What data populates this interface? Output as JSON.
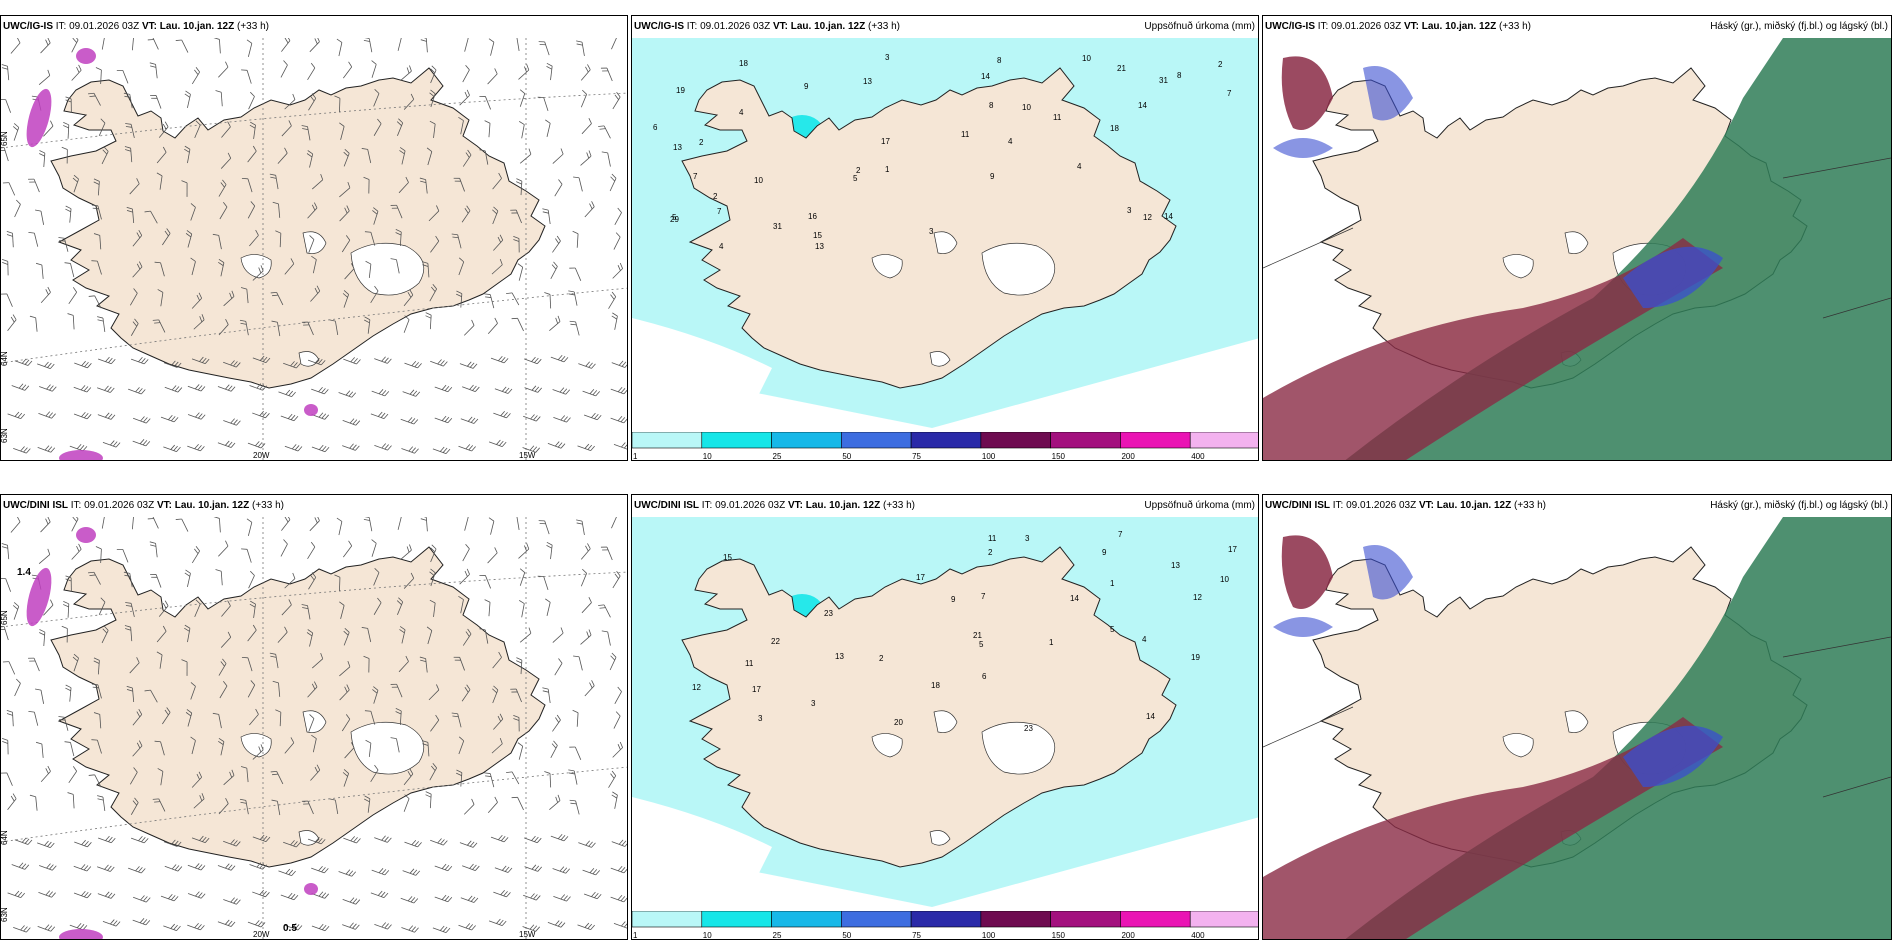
{
  "panels": [
    {
      "id": "top-left",
      "model": "UWC/IG-IS",
      "it_label": "IT:",
      "it_value": "09.01.2026 03Z",
      "vt_label": "VT:",
      "vt_value": "Lau. 10.jan. 12Z",
      "lead": "(+33 h)",
      "title_right": "",
      "lon_labels": [
        "20W",
        "15W"
      ],
      "lat_labels": [
        "65N",
        "64N",
        "63N"
      ]
    },
    {
      "id": "top-middle",
      "model": "UWC/IG-IS",
      "it_label": "IT:",
      "it_value": "09.01.2026 03Z",
      "vt_label": "VT:",
      "vt_value": "Lau. 10.jan. 12Z",
      "lead": "(+33 h)",
      "title_right": "Uppsöfnuð úrkoma (mm)"
    },
    {
      "id": "top-right",
      "model": "UWC/IG-IS",
      "it_label": "IT:",
      "it_value": "09.01.2026 03Z",
      "vt_label": "VT:",
      "vt_value": "Lau. 10.jan. 12Z",
      "lead": "(+33 h)",
      "title_right": "Háský (gr.), miðský (fj.bl.) og lágský (bl.)"
    },
    {
      "id": "bottom-left",
      "model": "UWC/DINI ISL",
      "it_label": "IT:",
      "it_value": "09.01.2026 03Z",
      "vt_label": "VT:",
      "vt_value": "Lau. 10.jan. 12Z",
      "lead": "(+33 h)",
      "title_right": "",
      "lon_labels": [
        "20W",
        "15W"
      ],
      "lat_labels": [
        "65N",
        "64N",
        "63N"
      ],
      "annotations": [
        "1.4",
        "0.5"
      ]
    },
    {
      "id": "bottom-middle",
      "model": "UWC/DINI ISL",
      "it_label": "IT:",
      "it_value": "09.01.2026 03Z",
      "vt_label": "VT:",
      "vt_value": "Lau. 10.jan. 12Z",
      "lead": "(+33 h)",
      "title_right": "Uppsöfnuð úrkoma (mm)"
    },
    {
      "id": "bottom-right",
      "model": "UWC/DINI ISL",
      "it_label": "IT:",
      "it_value": "09.01.2026 03Z",
      "vt_label": "VT:",
      "vt_value": "Lau. 10.jan. 12Z",
      "lead": "(+33 h)",
      "title_right": "Háský (gr.), miðský (fj.bl.) og lágský (bl.)"
    }
  ],
  "precip_legend": {
    "labels": [
      "1",
      "10",
      "25",
      "50",
      "75",
      "100",
      "150",
      "200",
      "400"
    ],
    "colors": [
      "#b9f7f7",
      "#16e6e8",
      "#17b8e8",
      "#3d6de0",
      "#2a2aa8",
      "#6e0b50",
      "#a3107e",
      "#ea14b4",
      "#f3b2ef"
    ]
  },
  "precip_numbers_top": [
    "14",
    "8",
    "7",
    "13",
    "15",
    "19",
    "18",
    "17",
    "10",
    "9",
    "13",
    "7",
    "29",
    "16",
    "21",
    "18",
    "11",
    "13",
    "31",
    "14",
    "4",
    "4",
    "10",
    "3",
    "5",
    "8",
    "2",
    "3",
    "1",
    "2",
    "4",
    "6",
    "7",
    "3",
    "5",
    "9",
    "12",
    "14",
    "2",
    "11",
    "10",
    "8",
    "31",
    "2",
    "4"
  ],
  "precip_numbers_bottom": [
    "3",
    "11",
    "17",
    "7",
    "10",
    "13",
    "9",
    "18",
    "14",
    "17",
    "20",
    "12",
    "14",
    "15",
    "13",
    "23",
    "19",
    "12",
    "21",
    "17",
    "5",
    "1",
    "3",
    "2",
    "1",
    "23",
    "22",
    "6",
    "4",
    "5",
    "9",
    "11",
    "7",
    "3",
    "2"
  ],
  "colors": {
    "land": "#f5e6d6",
    "precip_light": "#b9f7f7",
    "precip_mid": "#16e6e8",
    "high_cloud": "#2f7d57",
    "mid_cloud": "#8a2a45",
    "low_cloud": "#3a4fd0"
  }
}
